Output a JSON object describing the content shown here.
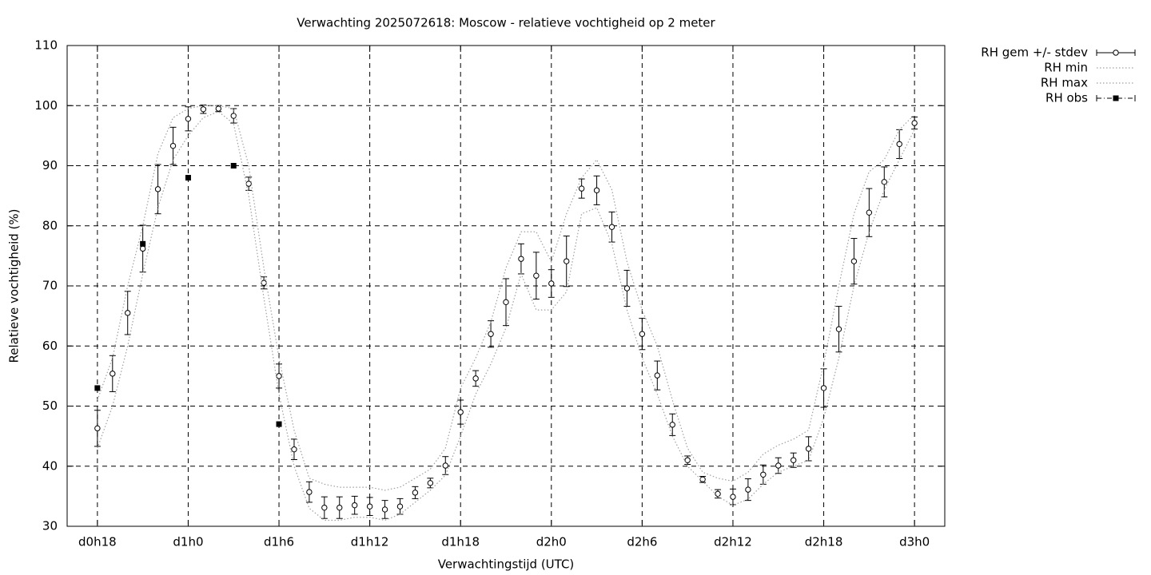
{
  "chart_data": {
    "type": "line",
    "title": "Verwachting 2025072618: Moscow - relatieve vochtigheid op 2 meter",
    "x_label": "Verwachtingstijd (UTC)",
    "y_label": "Relatieve vochtigheid (%)",
    "x": [
      18,
      19,
      20,
      21,
      22,
      23,
      24,
      25,
      26,
      27,
      28,
      29,
      30,
      31,
      32,
      33,
      34,
      35,
      36,
      37,
      38,
      39,
      40,
      41,
      42,
      43,
      44,
      45,
      46,
      47,
      48,
      49,
      50,
      51,
      52,
      53,
      54,
      55,
      56,
      57,
      58,
      59,
      60,
      61,
      62,
      63,
      64,
      65,
      66,
      67,
      68,
      69,
      70,
      71,
      72
    ],
    "xlim": [
      16,
      74
    ],
    "xticks": [
      {
        "value": 18,
        "label": "d0h18"
      },
      {
        "value": 24,
        "label": "d1h0"
      },
      {
        "value": 30,
        "label": "d1h6"
      },
      {
        "value": 36,
        "label": "d1h12"
      },
      {
        "value": 42,
        "label": "d1h18"
      },
      {
        "value": 48,
        "label": "d2h0"
      },
      {
        "value": 54,
        "label": "d2h6"
      },
      {
        "value": 60,
        "label": "d2h12"
      },
      {
        "value": 66,
        "label": "d2h18"
      },
      {
        "value": 72,
        "label": "d3h0"
      }
    ],
    "ylim": [
      30,
      110
    ],
    "yticks": [
      30,
      40,
      50,
      60,
      70,
      80,
      90,
      100,
      110
    ],
    "grid": true,
    "legend": "outside-right-top",
    "series": [
      {
        "name": "RH gem +/- stdev",
        "color": "#000000",
        "style": "errorbars",
        "values": [
          46.3,
          55.4,
          65.5,
          76.2,
          86.1,
          93.3,
          97.8,
          99.4,
          99.5,
          98.3,
          87.0,
          70.5,
          55.0,
          42.8,
          35.7,
          33.1,
          33.1,
          33.5,
          33.3,
          32.8,
          33.3,
          35.6,
          37.2,
          40.1,
          49.0,
          54.6,
          62.0,
          67.3,
          74.5,
          71.7,
          70.4,
          74.1,
          86.2,
          85.9,
          79.8,
          69.6,
          62.0,
          55.1,
          46.9,
          41.0,
          37.8,
          35.4,
          34.9,
          36.1,
          38.6,
          40.1,
          41.0,
          42.9,
          53.0,
          62.8,
          74.1,
          82.2,
          87.3,
          93.6,
          97.1
        ],
        "errors": [
          3,
          3,
          3.6,
          3.9,
          4.1,
          3.1,
          2,
          0.7,
          0.5,
          1.2,
          1.1,
          1.0,
          2,
          1.7,
          1.7,
          1.8,
          1.8,
          1.5,
          1.5,
          1.5,
          1.3,
          1,
          0.8,
          1.5,
          2,
          1.3,
          2.2,
          3.9,
          2.5,
          3.9,
          2.3,
          4.2,
          1.6,
          2.4,
          2.5,
          3,
          2.6,
          2.4,
          1.8,
          0.7,
          0.5,
          0.7,
          1.3,
          1.8,
          1.6,
          1.3,
          1.2,
          2,
          3.2,
          3.8,
          3.8,
          4,
          2.5,
          2.4,
          1
        ]
      },
      {
        "name": "RH min",
        "color": "#a0a0a0",
        "style": "dotted",
        "values": [
          43,
          50,
          60,
          72,
          83,
          91,
          95,
          98,
          99,
          97,
          85,
          68,
          52,
          40,
          33,
          31,
          31,
          31.5,
          31.5,
          31,
          32,
          34,
          36,
          38.5,
          45,
          52,
          57,
          63,
          72,
          66,
          66,
          69,
          82,
          83,
          77,
          66,
          58,
          52,
          45,
          40,
          37.5,
          35,
          33.5,
          34.5,
          37,
          39,
          40,
          41,
          48,
          58,
          70,
          79,
          86,
          91,
          96
        ]
      },
      {
        "name": "RH max",
        "color": "#a0a0a0",
        "style": "dotted",
        "values": [
          51,
          58,
          70,
          80,
          92,
          98,
          99.5,
          100,
          100,
          99.5,
          90,
          73,
          58,
          46,
          38,
          37,
          36.5,
          36.5,
          36.5,
          36,
          36.5,
          38,
          39.5,
          43,
          53,
          58,
          64,
          73,
          79,
          79,
          74,
          82,
          88,
          91,
          86,
          74,
          66,
          60,
          51,
          43,
          39,
          38,
          37.5,
          39,
          42,
          43.5,
          44.5,
          46,
          57,
          70,
          82,
          89,
          91,
          96,
          98.5
        ]
      },
      {
        "name": "RH obs",
        "color": "#000000",
        "style": "points",
        "x": [
          18,
          21,
          24,
          27,
          30
        ],
        "values": [
          53,
          77,
          88,
          90,
          47
        ]
      }
    ]
  }
}
